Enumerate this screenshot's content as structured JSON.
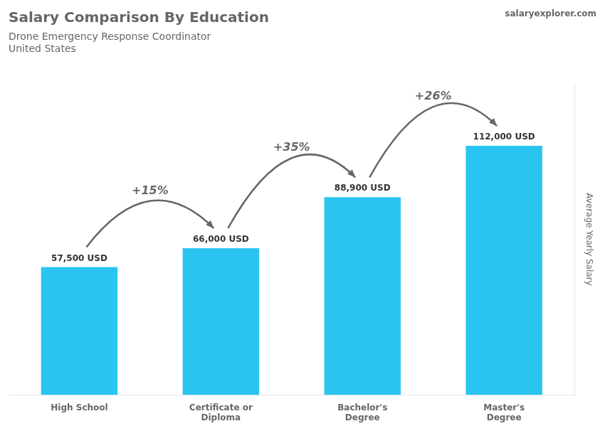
{
  "chart_data": {
    "type": "bar",
    "title": "Salary Comparison By Education",
    "subtitle": [
      "Drone Emergency Response Coordinator",
      "United States"
    ],
    "ylabel": "Average Yearly Salary",
    "source": "salaryexplorer.com",
    "categories": [
      "High School",
      "Certificate or\nDiploma",
      "Bachelor's\nDegree",
      "Master's\nDegree"
    ],
    "values": [
      57500,
      66000,
      88900,
      112000
    ],
    "value_labels": [
      "57,500 USD",
      "66,000 USD",
      "88,900 USD",
      "112,000 USD"
    ],
    "data_labels": true,
    "annotations": [
      "+15%",
      "+35%",
      "+26%"
    ],
    "color": "#29c5f0",
    "ylim": [
      0,
      140000
    ],
    "grid": false,
    "tick_labels": "x"
  }
}
